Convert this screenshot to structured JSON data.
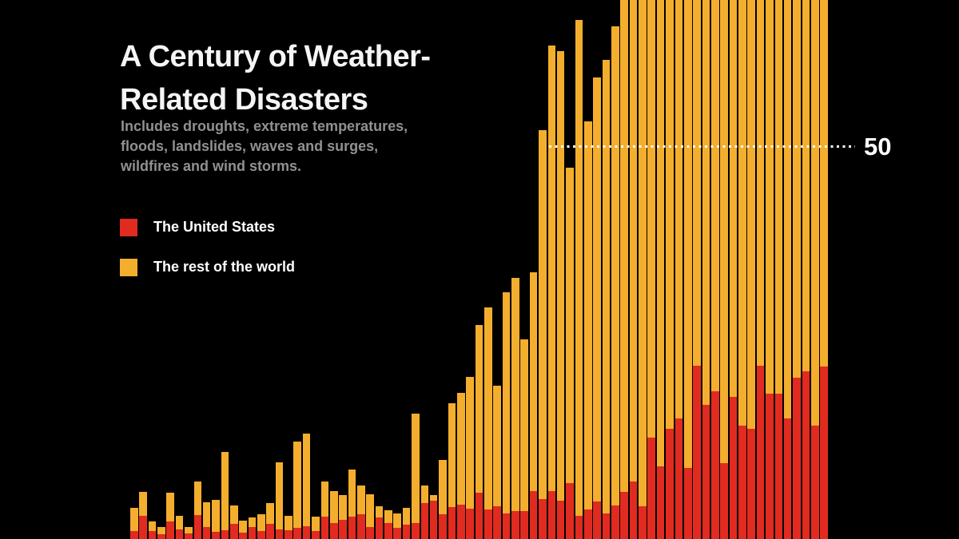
{
  "background": "#000000",
  "title": {
    "line1": "A Century of Weather-",
    "line2": "Related Disasters"
  },
  "subtitle": {
    "lines": [
      "Includes droughts, extreme temperatures,",
      "floods, landslides, waves and surges,",
      "wildfires and wind storms."
    ]
  },
  "legend": [
    {
      "label": "The United States",
      "color": "#e12b20"
    },
    {
      "label": "The rest of the world",
      "color": "#f4ae2e"
    }
  ],
  "reference_line": {
    "value": 50,
    "label": "50",
    "color": "#ffffff"
  },
  "chart_data": {
    "type": "bar",
    "stacked": true,
    "orientation": "vertical",
    "x_axis": "years (one bar per year, no tick labels shown)",
    "ylim": [
      0,
      68.6
    ],
    "gridlines": [
      50
    ],
    "legend_position": "upper-left",
    "units_per_pixel_note": "50 units = 492px in source frame",
    "series": [
      {
        "name": "The United States",
        "color": "#e12b20",
        "values": [
          1.0,
          3.0,
          1.0,
          0.6,
          2.2,
          1.2,
          0.7,
          3.1,
          1.5,
          0.9,
          1.1,
          1.9,
          0.8,
          1.5,
          1.0,
          1.9,
          1.2,
          1.1,
          1.4,
          1.6,
          1.0,
          2.9,
          2.0,
          2.4,
          2.8,
          3.2,
          1.5,
          2.7,
          2.0,
          1.4,
          1.8,
          2.0,
          4.6,
          4.9,
          3.2,
          4.1,
          4.4,
          3.9,
          5.9,
          3.8,
          4.2,
          3.3,
          3.6,
          3.6,
          6.1,
          5.1,
          6.1,
          4.9,
          7.1,
          3.0,
          3.8,
          4.8,
          3.3,
          4.3,
          6.0,
          7.3,
          4.2,
          12.9,
          9.3,
          14.0,
          15.3,
          9.0,
          22.1,
          17.1,
          18.8,
          9.7,
          18.1,
          14.4,
          14.0,
          22.1,
          18.5,
          18.5,
          15.4,
          20.5,
          21.3,
          14.4,
          22.0
        ]
      },
      {
        "name": "The rest of the world",
        "color": "#f4ae2e",
        "values": [
          3.0,
          3.0,
          1.2,
          0.9,
          3.7,
          1.8,
          0.8,
          4.2,
          3.2,
          4.1,
          10.0,
          2.4,
          1.5,
          1.2,
          2.2,
          2.7,
          8.6,
          1.9,
          11.0,
          11.8,
          1.9,
          4.4,
          4.1,
          3.2,
          6.0,
          3.6,
          4.2,
          1.5,
          1.7,
          1.9,
          2.2,
          14.0,
          2.2,
          0.7,
          6.9,
          13.2,
          14.2,
          16.7,
          21.3,
          25.7,
          15.3,
          28.1,
          29.6,
          21.8,
          27.9,
          46.9,
          56.7,
          57.2,
          40.2,
          63.1,
          49.4,
          53.9,
          57.7,
          60.9,
          65.0,
          65.7,
          66.8,
          59.1,
          61.7,
          59.0,
          56.7,
          62.0,
          51.9,
          54.9,
          52.2,
          62.3,
          54.9,
          56.6,
          58.0,
          51.9,
          53.5,
          52.5,
          56.6,
          52.5,
          50.7,
          56.6,
          51.0
        ]
      }
    ]
  }
}
